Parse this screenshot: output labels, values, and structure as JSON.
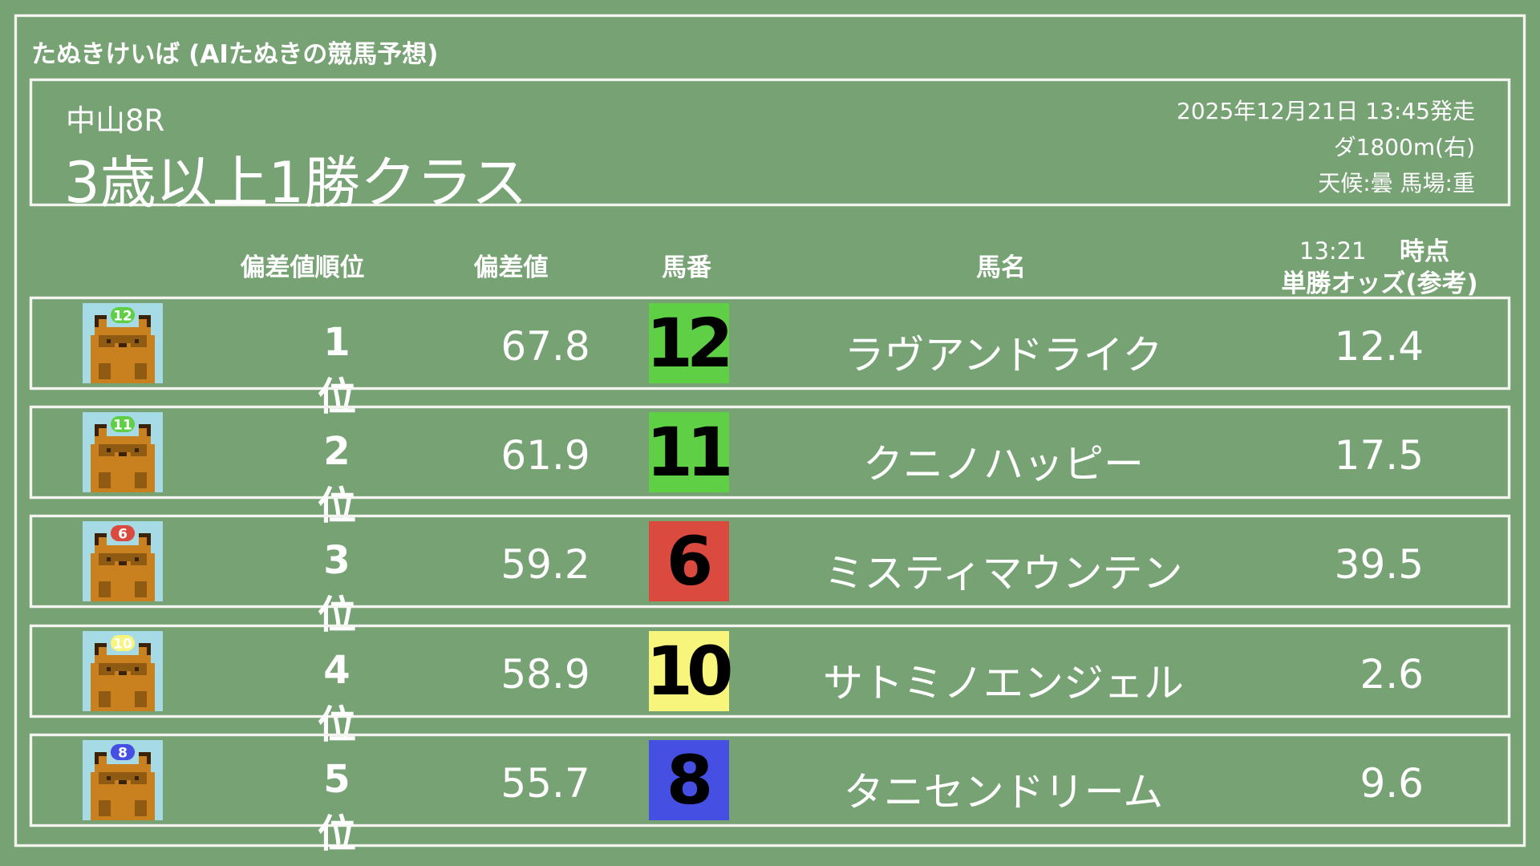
{
  "app_title": "たぬきけいば (AIたぬきの競馬予想)",
  "race": {
    "venue": "中山8R",
    "name": "3歳以上1勝クラス",
    "datetime": "2025年12月21日 13:45発走",
    "course": "ダ1800m(右)",
    "conditions": "天候:曇 馬場:重"
  },
  "columns": {
    "rank": "偏差値順位",
    "score": "偏差値",
    "number": "馬番",
    "name": "馬名",
    "odds_time": "13:21",
    "odds_when": "時点",
    "odds": "単勝オッズ(参考)"
  },
  "colors": {
    "background": "#77a274",
    "avatar_bg": "#a6dbe5"
  },
  "rows": [
    {
      "rank": "1位",
      "score": "67.8",
      "number": "12",
      "name": "ラヴアンドライク",
      "odds": "12.4",
      "color": "#5fcf46",
      "icon": "tanuki-avatar"
    },
    {
      "rank": "2位",
      "score": "61.9",
      "number": "11",
      "name": "クニノハッピー",
      "odds": "17.5",
      "color": "#5fcf46",
      "icon": "tanuki-avatar"
    },
    {
      "rank": "3位",
      "score": "59.2",
      "number": "6",
      "name": "ミスティマウンテン",
      "odds": "39.5",
      "color": "#da4a3e",
      "icon": "tanuki-avatar"
    },
    {
      "rank": "4位",
      "score": "58.9",
      "number": "10",
      "name": "サトミノエンジェル",
      "odds": "2.6",
      "color": "#f8f57c",
      "icon": "tanuki-avatar"
    },
    {
      "rank": "5位",
      "score": "55.7",
      "number": "8",
      "name": "タニセンドリーム",
      "odds": "9.6",
      "color": "#4550e3",
      "icon": "tanuki-avatar"
    }
  ]
}
